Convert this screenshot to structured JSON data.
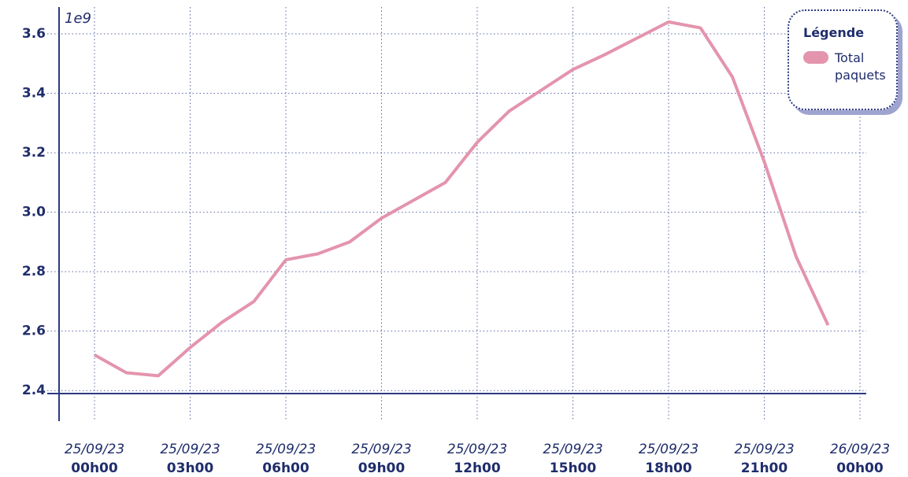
{
  "chart_data": {
    "type": "line",
    "offset_label": "1e9",
    "legend_title": "Légende",
    "legend": "top-right",
    "grid": true,
    "x": [
      "2023-09-25T00:00",
      "2023-09-25T01:00",
      "2023-09-25T02:00",
      "2023-09-25T03:00",
      "2023-09-25T04:00",
      "2023-09-25T05:00",
      "2023-09-25T06:00",
      "2023-09-25T07:00",
      "2023-09-25T08:00",
      "2023-09-25T09:00",
      "2023-09-25T10:00",
      "2023-09-25T11:00",
      "2023-09-25T12:00",
      "2023-09-25T13:00",
      "2023-09-25T14:00",
      "2023-09-25T15:00",
      "2023-09-25T16:00",
      "2023-09-25T17:00",
      "2023-09-25T18:00",
      "2023-09-25T19:00",
      "2023-09-25T20:00",
      "2023-09-25T21:00",
      "2023-09-25T22:00",
      "2023-09-25T23:00"
    ],
    "series": [
      {
        "name": "Total paquets",
        "color": "#e494ad",
        "values": [
          2.52,
          2.46,
          2.45,
          2.545,
          2.63,
          2.7,
          2.84,
          2.86,
          2.9,
          2.98,
          3.04,
          3.1,
          3.235,
          3.34,
          3.41,
          3.48,
          3.53,
          3.585,
          3.64,
          3.62,
          3.455,
          3.17,
          2.85,
          2.62
        ]
      }
    ],
    "xlim": [
      "2023-09-25T00:00",
      "2023-09-26T00:00"
    ],
    "xticks": [
      {
        "value": "2023-09-25T00:00",
        "label": [
          "25/09/23",
          "00h00"
        ]
      },
      {
        "value": "2023-09-25T03:00",
        "label": [
          "25/09/23",
          "03h00"
        ]
      },
      {
        "value": "2023-09-25T06:00",
        "label": [
          "25/09/23",
          "06h00"
        ]
      },
      {
        "value": "2023-09-25T09:00",
        "label": [
          "25/09/23",
          "09h00"
        ]
      },
      {
        "value": "2023-09-25T12:00",
        "label": [
          "25/09/23",
          "12h00"
        ]
      },
      {
        "value": "2023-09-25T15:00",
        "label": [
          "25/09/23",
          "15h00"
        ]
      },
      {
        "value": "2023-09-25T18:00",
        "label": [
          "25/09/23",
          "18h00"
        ]
      },
      {
        "value": "2023-09-25T21:00",
        "label": [
          "25/09/23",
          "21h00"
        ]
      },
      {
        "value": "2023-09-26T00:00",
        "label": [
          "26/09/23",
          "00h00"
        ]
      }
    ],
    "ylim": [
      2.39,
      3.69
    ],
    "yticks": [
      {
        "value": 2.4,
        "label": "2.4"
      },
      2.6,
      2.8,
      {
        "value": 3.0,
        "label": "3.0"
      },
      3.2,
      3.4,
      3.6
    ]
  }
}
